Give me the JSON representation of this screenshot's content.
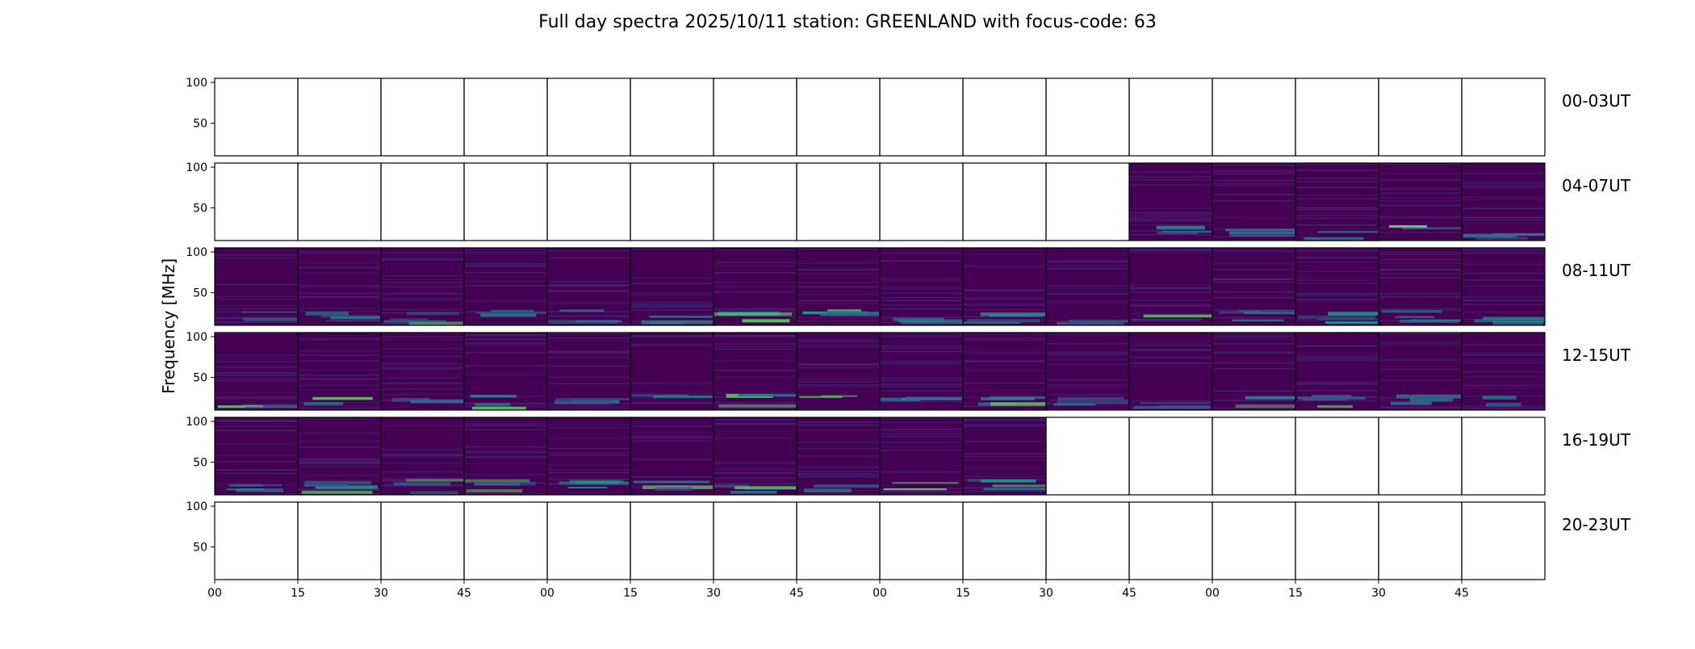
{
  "chart_data": {
    "type": "heatmap",
    "title": "Full day spectra 2025/10/11 station: GREENLAND with focus-code: 63",
    "ylabel": "Frequency [MHz]",
    "xlabel": "",
    "ylim": [
      10,
      105
    ],
    "yticks": [
      50,
      100
    ],
    "xticks": [
      "00",
      "15",
      "30",
      "45",
      "00",
      "15",
      "30",
      "45",
      "00",
      "15",
      "30",
      "45",
      "00",
      "15",
      "30",
      "45"
    ],
    "colormap": "viridis",
    "colors": {
      "background": "#440154",
      "mid": "#3b528b",
      "high": "#21918c",
      "peak": "#5ec962"
    },
    "panels_per_row": 16,
    "rows": [
      {
        "label": "00-03UT",
        "filled": [
          0,
          0,
          0,
          0,
          0,
          0,
          0,
          0,
          0,
          0,
          0,
          0,
          0,
          0,
          0,
          0
        ]
      },
      {
        "label": "04-07UT",
        "filled": [
          0,
          0,
          0,
          0,
          0,
          0,
          0,
          0,
          0,
          0,
          0,
          1,
          1,
          1,
          1,
          1
        ]
      },
      {
        "label": "08-11UT",
        "filled": [
          1,
          1,
          1,
          1,
          1,
          1,
          1,
          1,
          1,
          1,
          1,
          1,
          1,
          1,
          1,
          1
        ]
      },
      {
        "label": "12-15UT",
        "filled": [
          1,
          1,
          1,
          1,
          1,
          1,
          1,
          1,
          1,
          1,
          1,
          1,
          1,
          1,
          1,
          1
        ]
      },
      {
        "label": "16-19UT",
        "filled": [
          1,
          1,
          1,
          1,
          1,
          1,
          1,
          1,
          1,
          1,
          0,
          0,
          0,
          0,
          0,
          0
        ]
      },
      {
        "label": "20-23UT",
        "filled": [
          0,
          0,
          0,
          0,
          0,
          0,
          0,
          0,
          0,
          0,
          0,
          0,
          0,
          0,
          0,
          0
        ]
      }
    ]
  }
}
